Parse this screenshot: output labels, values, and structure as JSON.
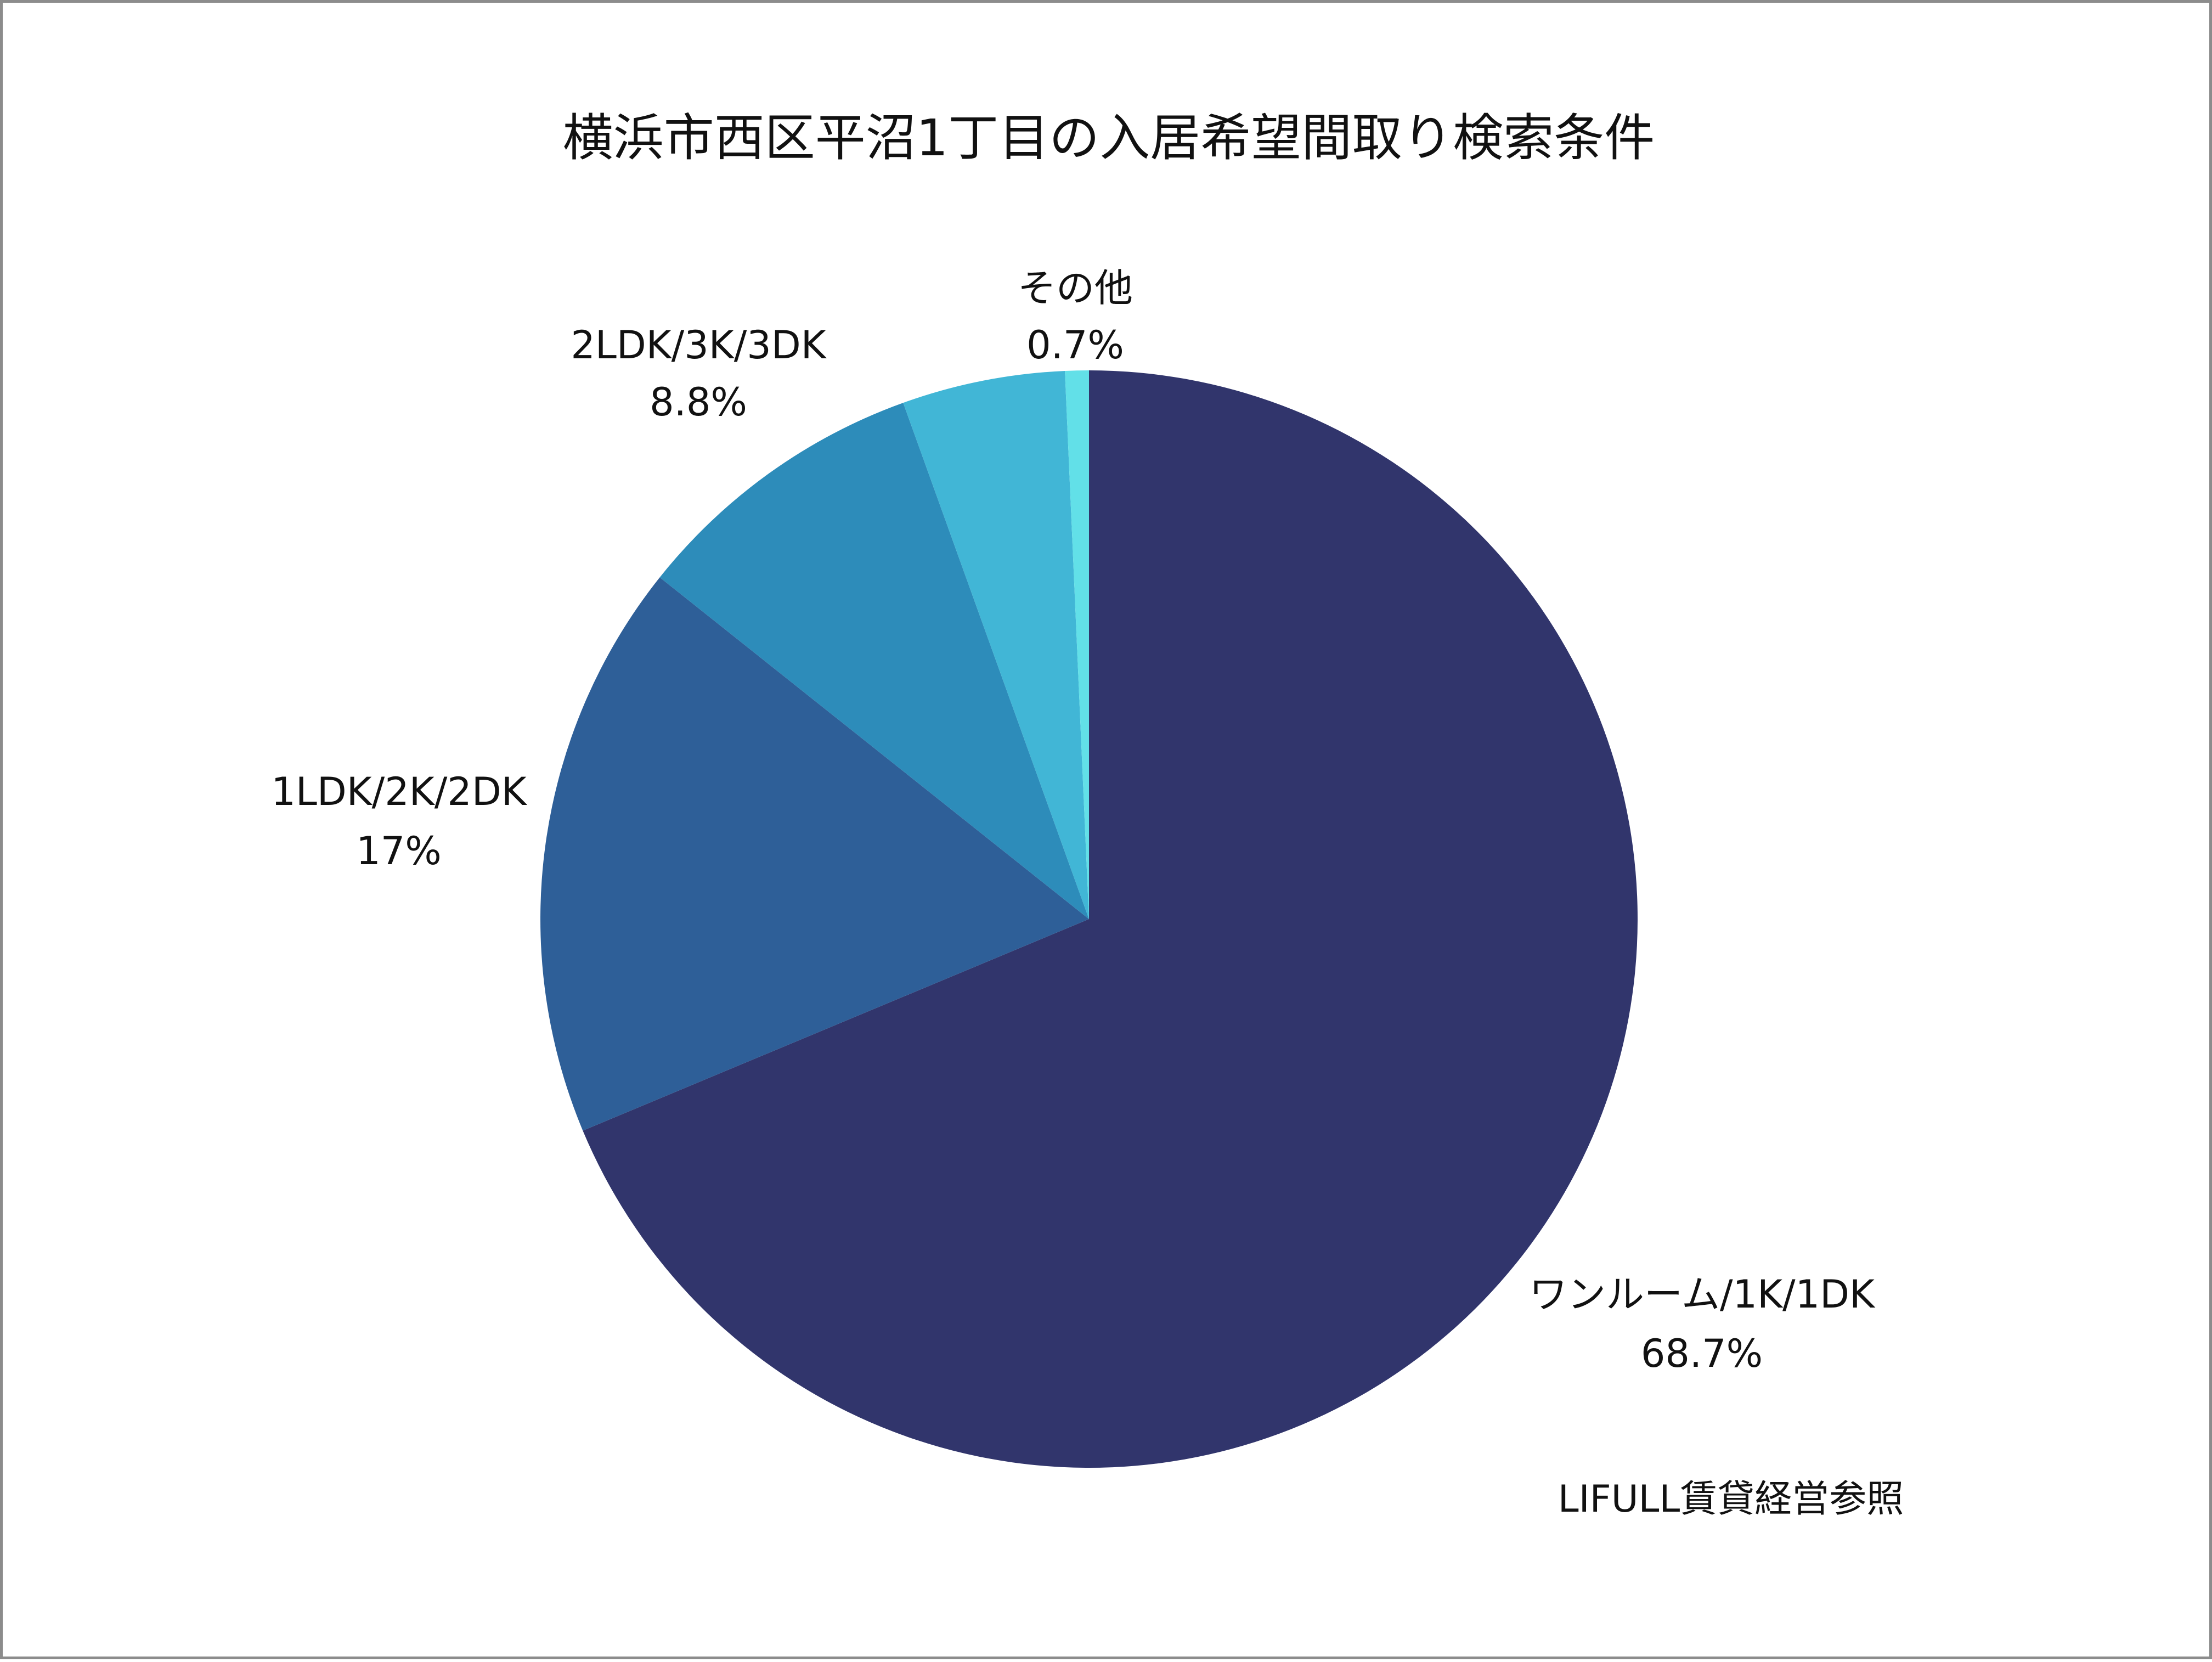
{
  "chart_data": {
    "type": "pie",
    "title": "横浜市西区平沼1丁目の入居希望間取り検索条件",
    "slices": [
      {
        "label": "ワンルーム/1K/1DK",
        "value": 68.7,
        "value_text": "68.7%",
        "color": "#31356c"
      },
      {
        "label": "1LDK/2K/2DK",
        "value": 17,
        "value_text": "17%",
        "color": "#2e5f98"
      },
      {
        "label": "2LDK/3K/3DK",
        "value": 8.8,
        "value_text": "8.8%",
        "color": "#2d8cba"
      },
      {
        "label": "",
        "value": 4.8,
        "value_text": "",
        "color": "#41b6d6"
      },
      {
        "label": "その他",
        "value": 0.7,
        "value_text": "0.7%",
        "color": "#62e0e8"
      }
    ],
    "start_angle_deg": 0,
    "direction": "clockwise"
  },
  "source_note": "LIFULL賃貸経営参照"
}
